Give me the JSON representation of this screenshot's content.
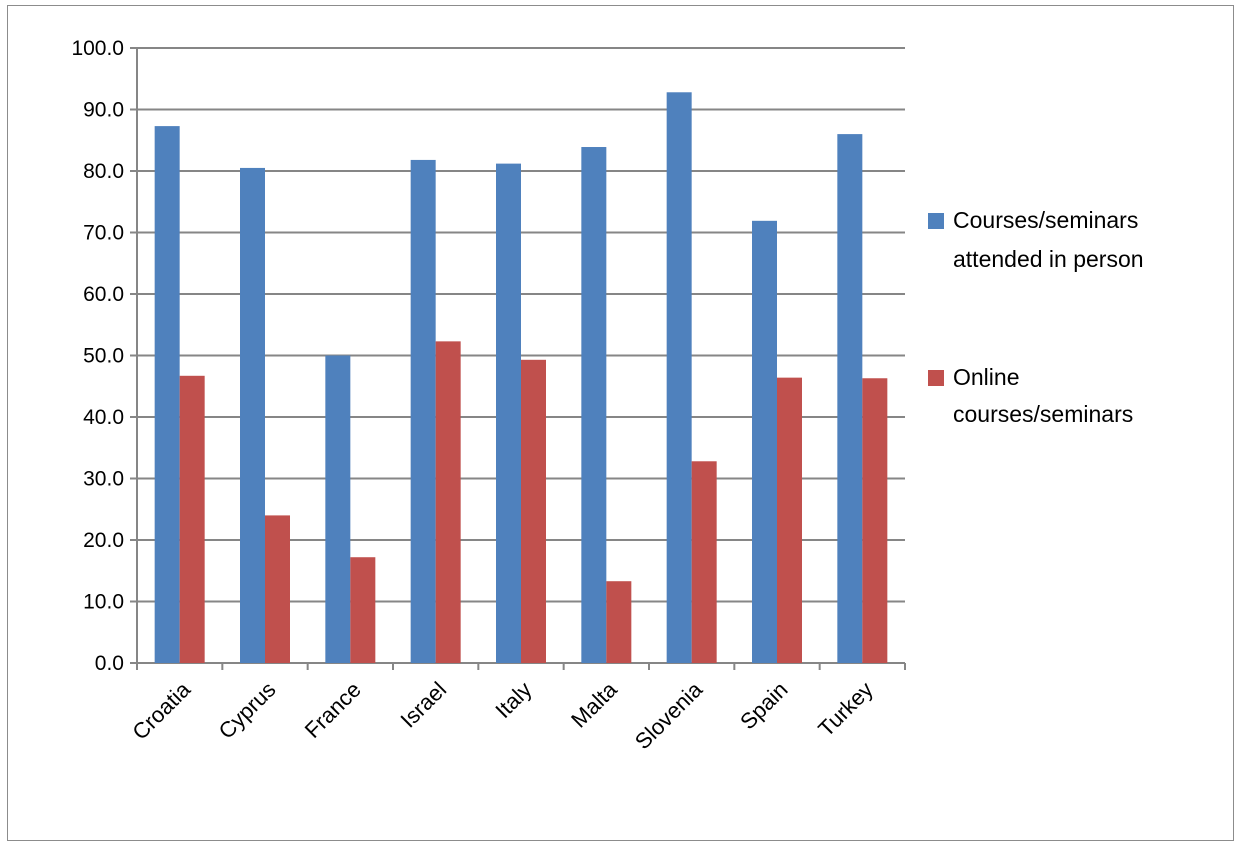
{
  "chart_data": {
    "type": "bar",
    "title": "",
    "xlabel": "",
    "ylabel": "",
    "ylim": [
      0,
      100
    ],
    "yticks": [
      "0.0",
      "10.0",
      "20.0",
      "30.0",
      "40.0",
      "50.0",
      "60.0",
      "70.0",
      "80.0",
      "90.0",
      "100.0"
    ],
    "categories": [
      "Croatia",
      "Cyprus",
      "France",
      "Israel",
      "Italy",
      "Malta",
      "Slovenia",
      "Spain",
      "Turkey"
    ],
    "series": [
      {
        "name": "Courses/seminars attended in person",
        "legend_lines": [
          "Courses/seminars",
          "attended in person"
        ],
        "color": "#4f81bd",
        "values": [
          87.3,
          80.5,
          50.0,
          81.8,
          81.2,
          83.9,
          92.8,
          71.9,
          86.0
        ]
      },
      {
        "name": "Online courses/seminars",
        "legend_lines": [
          "Online",
          "courses/seminars"
        ],
        "color": "#c0504d",
        "values": [
          46.7,
          24.0,
          17.2,
          52.3,
          49.3,
          13.3,
          32.8,
          46.4,
          46.3
        ]
      }
    ],
    "grid": true,
    "legend_position": "right"
  }
}
